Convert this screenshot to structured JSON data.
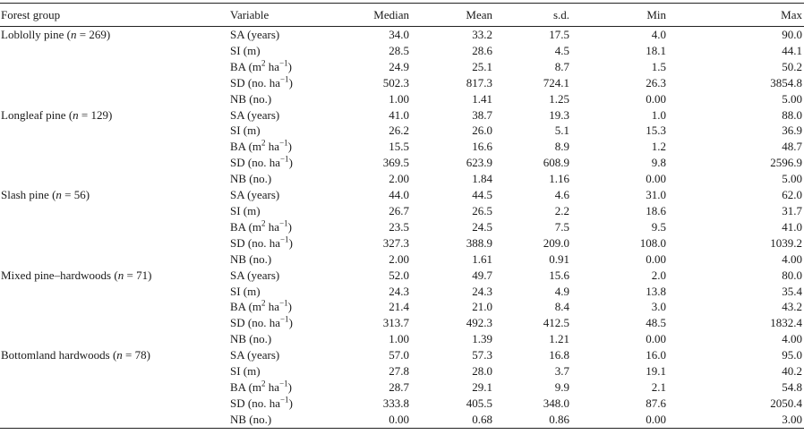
{
  "headers": {
    "group": "Forest group",
    "variable": "Variable",
    "median": "Median",
    "mean": "Mean",
    "sd": "s.d.",
    "min": "Min",
    "max": "Max"
  },
  "groups": [
    {
      "name": "Loblolly pine",
      "n": "269",
      "rows": [
        {
          "variable": "SA (years)",
          "median": "34.0",
          "mean": "33.2",
          "sd": "17.5",
          "min": "4.0",
          "max": "90.0"
        },
        {
          "variable": "SI (m)",
          "median": "28.5",
          "mean": "28.6",
          "sd": "4.5",
          "min": "18.1",
          "max": "44.1"
        },
        {
          "variable": "BA (m2 ha−1)",
          "median": "24.9",
          "mean": "25.1",
          "sd": "8.7",
          "min": "1.5",
          "max": "50.2"
        },
        {
          "variable": "SD (no. ha−1)",
          "median": "502.3",
          "mean": "817.3",
          "sd": "724.1",
          "min": "26.3",
          "max": "3854.8"
        },
        {
          "variable": "NB (no.)",
          "median": "1.00",
          "mean": "1.41",
          "sd": "1.25",
          "min": "0.00",
          "max": "5.00"
        }
      ]
    },
    {
      "name": "Longleaf pine",
      "n": "129",
      "rows": [
        {
          "variable": "SA (years)",
          "median": "41.0",
          "mean": "38.7",
          "sd": "19.3",
          "min": "1.0",
          "max": "88.0"
        },
        {
          "variable": "SI (m)",
          "median": "26.2",
          "mean": "26.0",
          "sd": "5.1",
          "min": "15.3",
          "max": "36.9"
        },
        {
          "variable": "BA (m2 ha−1)",
          "median": "15.5",
          "mean": "16.6",
          "sd": "8.9",
          "min": "1.2",
          "max": "48.7"
        },
        {
          "variable": "SD (no. ha−1)",
          "median": "369.5",
          "mean": "623.9",
          "sd": "608.9",
          "min": "9.8",
          "max": "2596.9"
        },
        {
          "variable": "NB (no.)",
          "median": "2.00",
          "mean": "1.84",
          "sd": "1.16",
          "min": "0.00",
          "max": "5.00"
        }
      ]
    },
    {
      "name": "Slash pine",
      "n": "56",
      "rows": [
        {
          "variable": "SA (years)",
          "median": "44.0",
          "mean": "44.5",
          "sd": "4.6",
          "min": "31.0",
          "max": "62.0"
        },
        {
          "variable": "SI (m)",
          "median": "26.7",
          "mean": "26.5",
          "sd": "2.2",
          "min": "18.6",
          "max": "31.7"
        },
        {
          "variable": "BA (m2 ha−1)",
          "median": "23.5",
          "mean": "24.5",
          "sd": "7.5",
          "min": "9.5",
          "max": "41.0"
        },
        {
          "variable": "SD (no. ha−1)",
          "median": "327.3",
          "mean": "388.9",
          "sd": "209.0",
          "min": "108.0",
          "max": "1039.2"
        },
        {
          "variable": "NB (no.)",
          "median": "2.00",
          "mean": "1.61",
          "sd": "0.91",
          "min": "0.00",
          "max": "4.00"
        }
      ]
    },
    {
      "name": "Mixed pine–hardwoods",
      "n": "71",
      "rows": [
        {
          "variable": "SA (years)",
          "median": "52.0",
          "mean": "49.7",
          "sd": "15.6",
          "min": "2.0",
          "max": "80.0"
        },
        {
          "variable": "SI (m)",
          "median": "24.3",
          "mean": "24.3",
          "sd": "4.9",
          "min": "13.8",
          "max": "35.4"
        },
        {
          "variable": "BA (m2 ha−1)",
          "median": "21.4",
          "mean": "21.0",
          "sd": "8.4",
          "min": "3.0",
          "max": "43.2"
        },
        {
          "variable": "SD (no. ha−1)",
          "median": "313.7",
          "mean": "492.3",
          "sd": "412.5",
          "min": "48.5",
          "max": "1832.4"
        },
        {
          "variable": "NB (no.)",
          "median": "1.00",
          "mean": "1.39",
          "sd": "1.21",
          "min": "0.00",
          "max": "4.00"
        }
      ]
    },
    {
      "name": "Bottomland hardwoods",
      "n": "78",
      "rows": [
        {
          "variable": "SA (years)",
          "median": "57.0",
          "mean": "57.3",
          "sd": "16.8",
          "min": "16.0",
          "max": "95.0"
        },
        {
          "variable": "SI (m)",
          "median": "27.8",
          "mean": "28.0",
          "sd": "3.7",
          "min": "19.1",
          "max": "40.2"
        },
        {
          "variable": "BA (m2 ha−1)",
          "median": "28.7",
          "mean": "29.1",
          "sd": "9.9",
          "min": "2.1",
          "max": "54.8"
        },
        {
          "variable": "SD (no. ha−1)",
          "median": "333.8",
          "mean": "405.5",
          "sd": "348.0",
          "min": "87.6",
          "max": "2050.4"
        },
        {
          "variable": "NB (no.)",
          "median": "0.00",
          "mean": "0.68",
          "sd": "0.86",
          "min": "0.00",
          "max": "3.00"
        }
      ]
    }
  ]
}
